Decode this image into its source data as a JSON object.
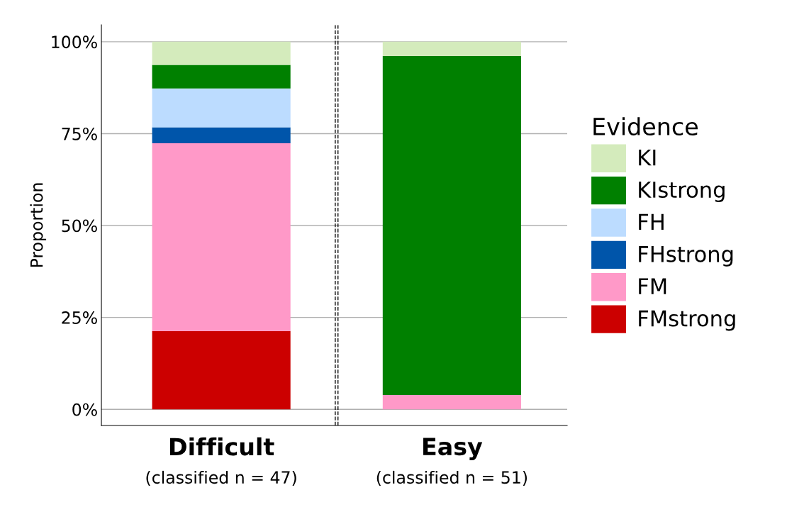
{
  "chart_data": {
    "type": "bar",
    "stacked": true,
    "ylabel": "Proportion",
    "legend_title": "Evidence",
    "legend": "right",
    "categories": [
      "Difficult\n(classified n = 47)",
      "Easy\n(classified n = 51)"
    ],
    "series": [
      {
        "name": "FMstrong",
        "color": "#cc0000",
        "values": [
          21.3,
          0
        ]
      },
      {
        "name": "FM",
        "color": "#ff99c8",
        "values": [
          51.1,
          3.9
        ]
      },
      {
        "name": "FHstrong",
        "color": "#0055aa",
        "values": [
          4.3,
          0
        ]
      },
      {
        "name": "FH",
        "color": "#bcdcff",
        "values": [
          10.6,
          0
        ]
      },
      {
        "name": "KIstrong",
        "color": "#008000",
        "values": [
          6.4,
          92.2
        ]
      },
      {
        "name": "KI",
        "color": "#d4ebbc",
        "values": [
          6.3,
          3.9
        ]
      }
    ],
    "ylim": [
      -4.4,
      104.6
    ],
    "yticks": [
      {
        "value": 0,
        "label": "0%"
      },
      {
        "value": 25,
        "label": "25%"
      },
      {
        "value": 50,
        "label": "50%"
      },
      {
        "value": 75,
        "label": "75%"
      },
      {
        "value": 100,
        "label": "100%"
      }
    ],
    "grid": "y"
  }
}
